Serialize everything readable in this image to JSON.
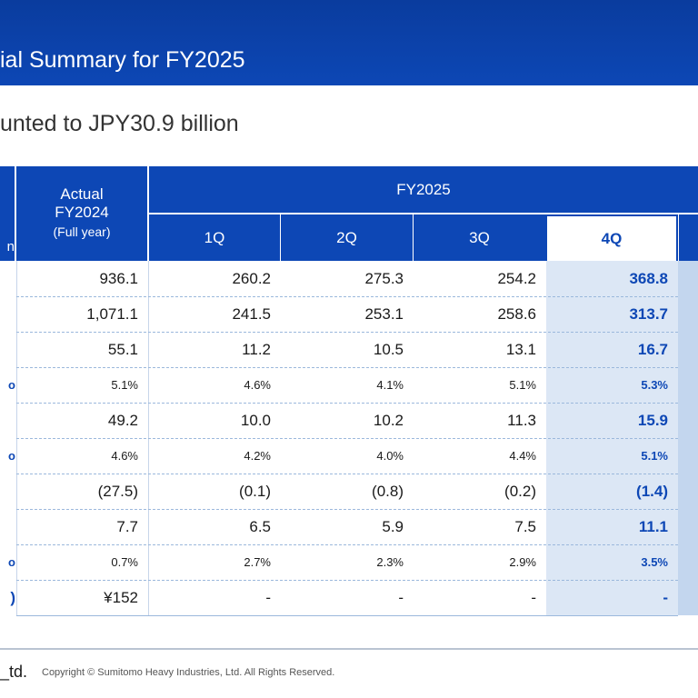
{
  "header": {
    "title": "ial Summary for FY2025"
  },
  "subtitle": "unted to JPY30.9 billion",
  "table": {
    "group_header": "FY2025",
    "row_label_header_fragment": "n",
    "actual_header": {
      "line1": "Actual",
      "line2": "FY2024",
      "line3": "(Full year)"
    },
    "quarters": [
      "1Q",
      "2Q",
      "3Q",
      "4Q"
    ],
    "rows": [
      {
        "label": "",
        "actual": "936.1",
        "q1": "260.2",
        "q2": "275.3",
        "q3": "254.2",
        "q4": "368.8",
        "size": "big"
      },
      {
        "label": "",
        "actual": "1,071.1",
        "q1": "241.5",
        "q2": "253.1",
        "q3": "258.6",
        "q4": "313.7",
        "size": "big"
      },
      {
        "label": "",
        "actual": "55.1",
        "q1": "11.2",
        "q2": "10.5",
        "q3": "13.1",
        "q4": "16.7",
        "size": "big"
      },
      {
        "label": "o",
        "actual": "5.1%",
        "q1": "4.6%",
        "q2": "4.1%",
        "q3": "5.1%",
        "q4": "5.3%",
        "size": "small"
      },
      {
        "label": "",
        "actual": "49.2",
        "q1": "10.0",
        "q2": "10.2",
        "q3": "11.3",
        "q4": "15.9",
        "size": "big"
      },
      {
        "label": "o",
        "actual": "4.6%",
        "q1": "4.2%",
        "q2": "4.0%",
        "q3": "4.4%",
        "q4": "5.1%",
        "size": "small"
      },
      {
        "label": "",
        "actual": "(27.5)",
        "q1": "(0.1)",
        "q2": "(0.8)",
        "q3": "(0.2)",
        "q4": "(1.4)",
        "size": "big"
      },
      {
        "label": "",
        "actual": "7.7",
        "q1": "6.5",
        "q2": "5.9",
        "q3": "7.5",
        "q4": "11.1",
        "size": "big"
      },
      {
        "label": "o",
        "actual": "0.7%",
        "q1": "2.7%",
        "q2": "2.3%",
        "q3": "2.9%",
        "q4": "3.5%",
        "size": "small"
      },
      {
        "label": ")",
        "actual": "¥152",
        "q1": "-",
        "q2": "-",
        "q3": "-",
        "q4": "-",
        "size": "big"
      }
    ]
  },
  "footer": {
    "logo_fragment": "_td.",
    "copyright": "Copyright © Sumitomo Heavy Industries, Ltd. All Rights Reserved."
  },
  "colors": {
    "brand_blue": "#0d47b5",
    "highlight_column": "#dce7f5"
  }
}
